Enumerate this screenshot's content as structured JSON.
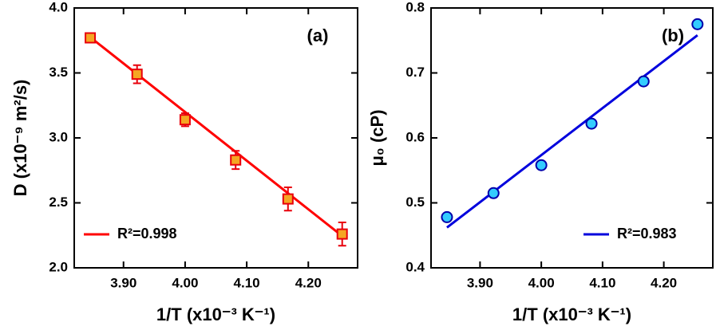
{
  "chart_data": [
    {
      "type": "scatter",
      "annotation": "(a)",
      "x_label": "1/T (x10⁻³ K⁻¹)",
      "y_label": "D (x10⁻⁹ m²/s)",
      "xlim": [
        3.82,
        4.28
      ],
      "ylim": [
        2.0,
        4.0
      ],
      "xticks": [
        {
          "value": 3.9,
          "label": "3.90"
        },
        {
          "value": 4.0,
          "label": "4.00"
        },
        {
          "value": 4.1,
          "label": "4.10"
        },
        {
          "value": 4.2,
          "label": "4.20"
        }
      ],
      "yticks": [
        {
          "value": 2.0,
          "label": "2.0"
        },
        2.5,
        {
          "value": 3.0,
          "label": "3.0"
        },
        3.5,
        {
          "value": 4.0,
          "label": "4.0"
        }
      ],
      "marker": "square",
      "points": {
        "x": [
          3.846,
          3.922,
          4.0,
          4.082,
          4.167,
          4.255
        ],
        "values": [
          3.77,
          3.49,
          3.14,
          2.83,
          2.53,
          2.26
        ],
        "errors": [
          0.03,
          0.07,
          0.05,
          0.07,
          0.09,
          0.09
        ],
        "color": "#f5a623",
        "edge_color": "#e8000b"
      },
      "fit": {
        "name": "R²=0.998",
        "x": [
          3.846,
          4.255
        ],
        "values": [
          3.775,
          2.245
        ],
        "color": "#ff0000"
      },
      "legend": "lower left"
    },
    {
      "type": "scatter",
      "annotation": "(b)",
      "x_label": "1/T (x10⁻³ K⁻¹)",
      "y_label": "μ₀ (cP)",
      "xlim": [
        3.82,
        4.28
      ],
      "ylim": [
        0.4,
        0.8
      ],
      "xticks": [
        {
          "value": 3.9,
          "label": "3.90"
        },
        {
          "value": 4.0,
          "label": "4.00"
        },
        {
          "value": 4.1,
          "label": "4.10"
        },
        {
          "value": 4.2,
          "label": "4.20"
        }
      ],
      "yticks": [
        0.4,
        0.5,
        0.6,
        0.7,
        0.8
      ],
      "marker": "circle",
      "points": {
        "x": [
          3.846,
          3.922,
          4.0,
          4.082,
          4.167,
          4.255
        ],
        "values": [
          0.478,
          0.515,
          0.558,
          0.622,
          0.687,
          0.775
        ],
        "color": "#33ccff",
        "edge_color": "#0000aa"
      },
      "fit": {
        "name": "R²=0.983",
        "x": [
          3.846,
          4.255
        ],
        "values": [
          0.462,
          0.758
        ],
        "color": "#0000dd"
      },
      "legend": "lower right"
    }
  ]
}
